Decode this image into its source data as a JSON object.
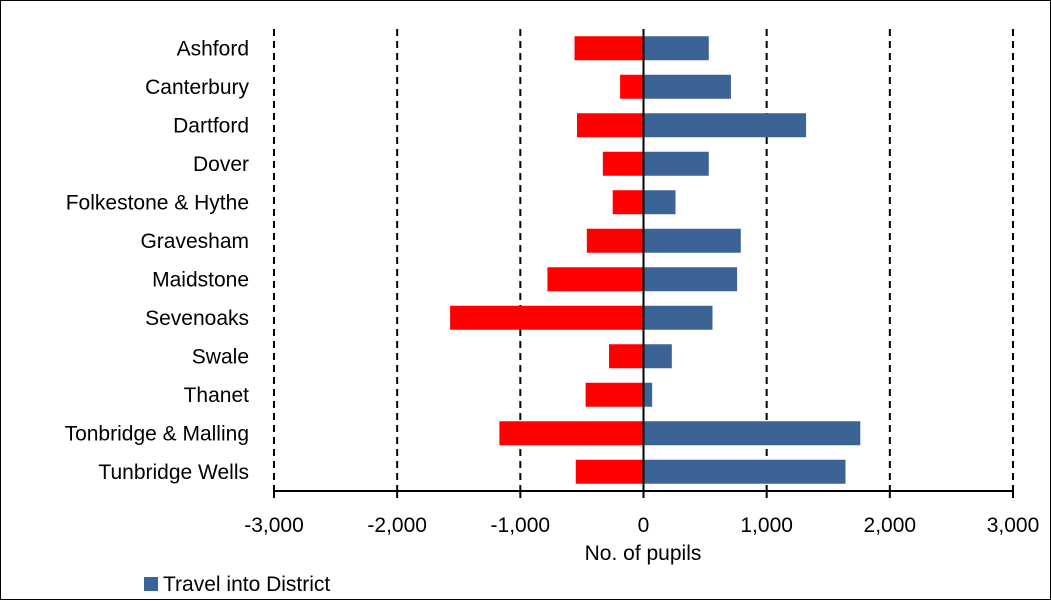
{
  "chart_data": {
    "type": "bar",
    "orientation": "horizontal",
    "title": "",
    "xlabel": "No. of pupils",
    "ylabel": "",
    "xlim": [
      -3000,
      3000
    ],
    "x_ticks": [
      -3000,
      -2000,
      -1000,
      0,
      1000,
      2000,
      3000
    ],
    "x_tick_labels": [
      "-3,000",
      "-2,000",
      "-1,000",
      "0",
      "1,000",
      "2,000",
      "3,000"
    ],
    "grid": "vertical dashed",
    "legend_position": "bottom-left",
    "categories": [
      "Ashford",
      "Canterbury",
      "Dartford",
      "Dover",
      "Folkestone & Hythe",
      "Gravesham",
      "Maidstone",
      "Sevenoaks",
      "Swale",
      "Thanet",
      "Tonbridge & Malling",
      "Tunbridge Wells"
    ],
    "series": [
      {
        "name": "",
        "color": "#ff0000",
        "values": [
          -560,
          -190,
          -540,
          -330,
          -250,
          -460,
          -780,
          -1570,
          -280,
          -470,
          -1170,
          -550
        ]
      },
      {
        "name": "Travel into District",
        "color": "#3b6396",
        "values": [
          530,
          710,
          1320,
          530,
          260,
          790,
          760,
          560,
          230,
          70,
          1760,
          1640
        ]
      }
    ]
  }
}
